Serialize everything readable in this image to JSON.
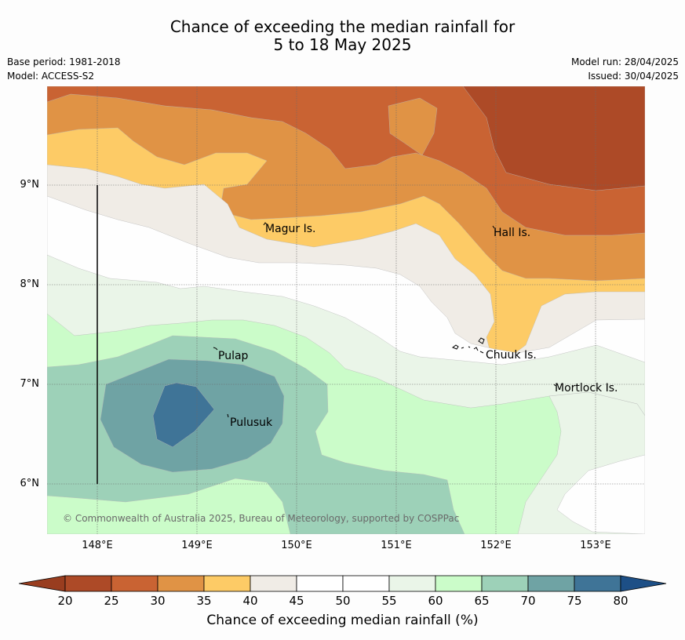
{
  "title": {
    "line1": "Chance of exceeding the median rainfall for",
    "line2": "5 to 18 May 2025"
  },
  "meta": {
    "base_period": "Base period: 1981-2018",
    "model": "Model: ACCESS-S2",
    "model_run": "Model run: 28/04/2025",
    "issued": "Issued: 30/04/2025"
  },
  "axes": {
    "lat_labels": [
      "9°N",
      "8°N",
      "7°N",
      "6°N"
    ],
    "lon_labels": [
      "148°E",
      "149°E",
      "150°E",
      "151°E",
      "152°E",
      "153°E"
    ],
    "lon_range": [
      147.5,
      153.5
    ],
    "lat_range": [
      5.5,
      10.0
    ],
    "grid": true
  },
  "places": [
    {
      "name": "Magur Is.",
      "lon": 149.66,
      "lat": 8.56
    },
    {
      "name": "Hall Is.",
      "lon": 151.97,
      "lat": 8.53
    },
    {
      "name": "Pulap",
      "lon": 149.2,
      "lat": 7.32
    },
    {
      "name": "Chuuk Is.",
      "lon": 151.85,
      "lat": 7.42
    },
    {
      "name": "Mortlock Is.",
      "lon": 152.6,
      "lat": 6.97
    },
    {
      "name": "Pulusuk",
      "lon": 149.3,
      "lat": 6.68
    }
  ],
  "copyright": "© Commonwealth of Australia 2025, Bureau of Meteorology, supported by COSPPac",
  "colorbar": {
    "label": "Chance of exceeding median rainfall (%)",
    "ticks": [
      "20",
      "25",
      "30",
      "35",
      "40",
      "45",
      "50",
      "55",
      "60",
      "65",
      "70",
      "75",
      "80"
    ],
    "colors": [
      "#ad4a27",
      "#c96333",
      "#e09345",
      "#fdcb66",
      "#f0ece6",
      "#ffffff",
      "#ffffff",
      "#eaf5e8",
      "#cbfcc9",
      "#9dd1b8",
      "#6fa3a4",
      "#3f7497"
    ],
    "under_color": "#993d1f",
    "over_color": "#1d4f86"
  },
  "map_colors": {
    "p20": "#ad4a27",
    "p25": "#c96333",
    "p30": "#e09345",
    "p35": "#fdcb66",
    "p40": "#f0ece6",
    "p45": "#fefefe",
    "p55": "#eaf5e8",
    "p60": "#cbfcc9",
    "p65": "#9dd1b8",
    "p70": "#6fa3a4",
    "p75": "#3f7497"
  }
}
